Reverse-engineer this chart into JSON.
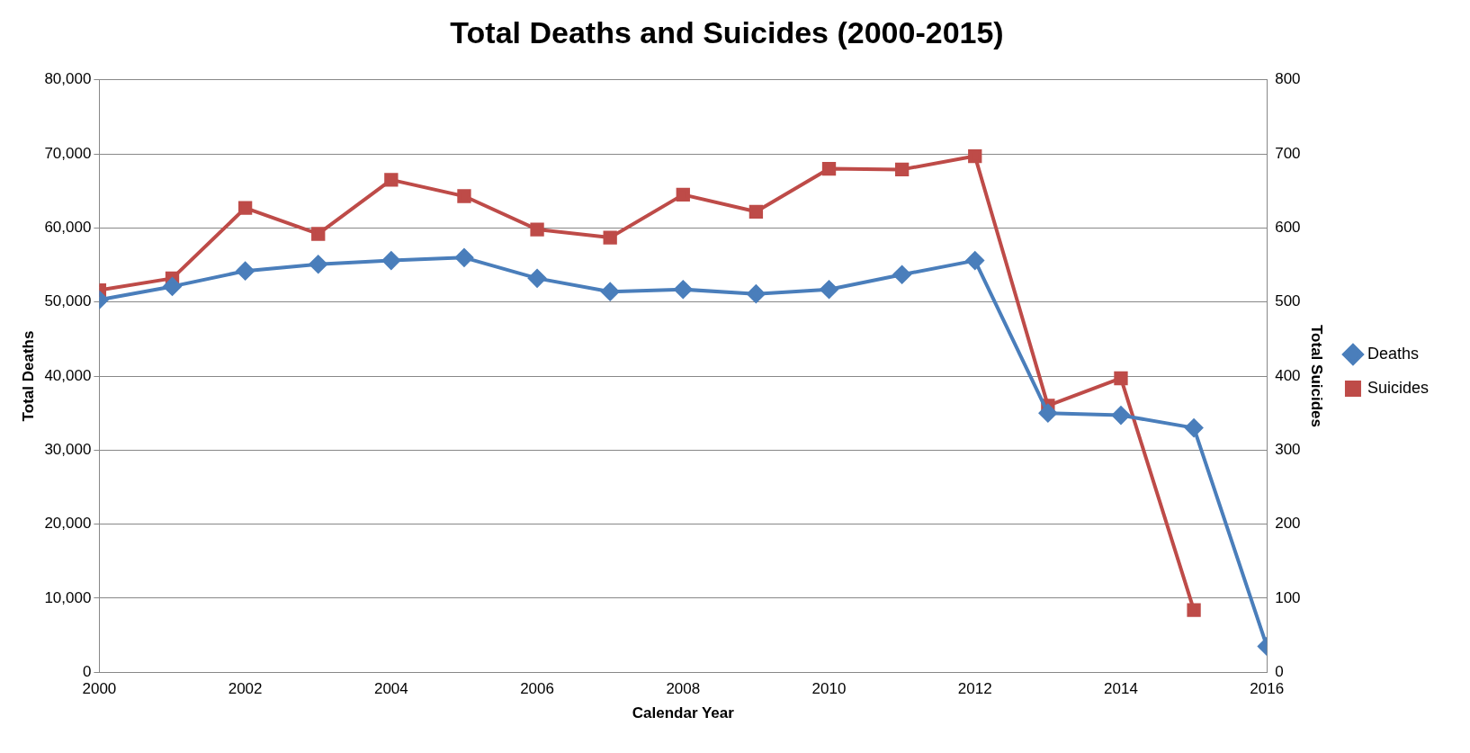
{
  "chart_data": {
    "type": "line",
    "title": "Total Deaths and Suicides (2000-2015)",
    "xlabel": "Calendar Year",
    "ylabel": "Total Deaths",
    "y2label": "Total Suicides",
    "x": [
      2000,
      2001,
      2002,
      2003,
      2004,
      2005,
      2006,
      2007,
      2008,
      2009,
      2010,
      2011,
      2012,
      2013,
      2014,
      2015,
      2016
    ],
    "series": [
      {
        "name": "Deaths",
        "color": "#4a7ebb",
        "marker": "diamond",
        "values": [
          50300,
          52100,
          54200,
          55100,
          55600,
          56000,
          53200,
          51400,
          51700,
          51100,
          51700,
          53700,
          55600,
          35000,
          34700,
          33000,
          3500
        ]
      },
      {
        "name": "Suicides",
        "color": "#be4b48",
        "marker": "square",
        "axis": "y2",
        "values": [
          516,
          532,
          627,
          592,
          665,
          643,
          598,
          587,
          645,
          622,
          680,
          679,
          697,
          360,
          397,
          84,
          null
        ]
      }
    ],
    "xlim": [
      2000,
      2016
    ],
    "xticks": [
      2000,
      2002,
      2004,
      2006,
      2008,
      2010,
      2012,
      2014,
      2016
    ],
    "ylim": [
      0,
      80000
    ],
    "yticks": [
      0,
      {
        "value": 10000,
        "label": "10,000"
      },
      {
        "value": 20000,
        "label": "20,000"
      },
      {
        "value": 30000,
        "label": "30,000"
      },
      {
        "value": 40000,
        "label": "40,000"
      },
      {
        "value": 50000,
        "label": "50,000"
      },
      {
        "value": 60000,
        "label": "60,000"
      },
      {
        "value": 70000,
        "label": "70,000"
      },
      {
        "value": 80000,
        "label": "80,000"
      }
    ],
    "y2lim": [
      0,
      800
    ],
    "y2ticks": [
      0,
      100,
      200,
      300,
      400,
      500,
      600,
      700,
      800
    ],
    "grid": "y",
    "legend": "right"
  }
}
